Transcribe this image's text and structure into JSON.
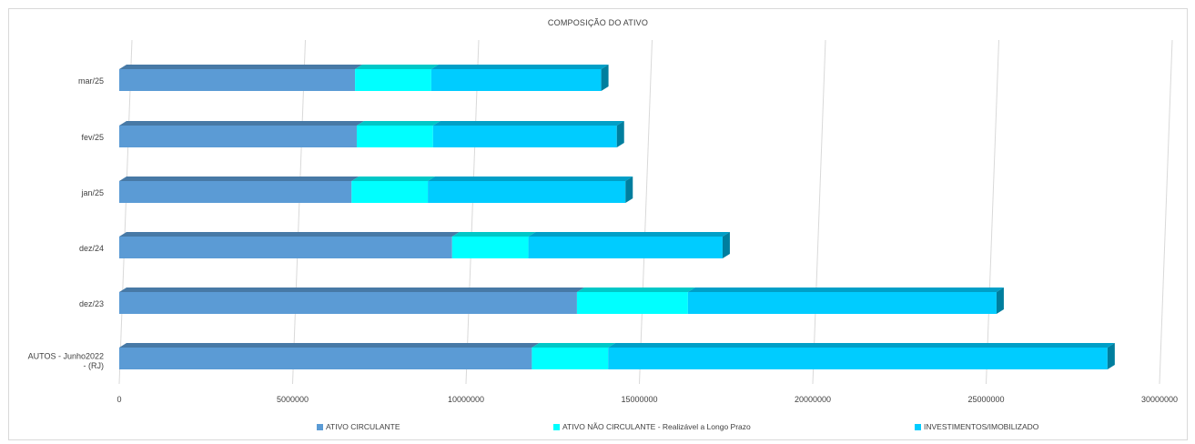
{
  "chart_data": {
    "type": "bar",
    "orientation": "horizontal",
    "stacked": true,
    "style": "3d",
    "title": "COMPOSIÇÃO DO ATIVO",
    "categories": [
      "AUTOS - Junho2022 - (RJ)",
      "dez/23",
      "dez/24",
      "jan/25",
      "fev/25",
      "mar/25"
    ],
    "series": [
      {
        "name": "ATIVO CIRCULANTE",
        "color": "#5b9bd5",
        "values": [
          11900000,
          13200000,
          9600000,
          6700000,
          6850000,
          6800000
        ]
      },
      {
        "name": "ATIVO NÃO CIRCULANTE - Realizável a Longo Prazo",
        "color": "#00ffff",
        "values": [
          2200000,
          3200000,
          2200000,
          2200000,
          2200000,
          2200000
        ]
      },
      {
        "name": "INVESTIMENTOS/IMOBILIZADO",
        "color": "#00ccff",
        "values": [
          14400000,
          8900000,
          5600000,
          5700000,
          5300000,
          4900000
        ]
      }
    ],
    "xlim": [
      0,
      30000000
    ],
    "xticks": [
      "0",
      "5000000",
      "10000000",
      "15000000",
      "20000000",
      "25000000",
      "30000000"
    ],
    "grid": true,
    "legend_position": "bottom"
  }
}
